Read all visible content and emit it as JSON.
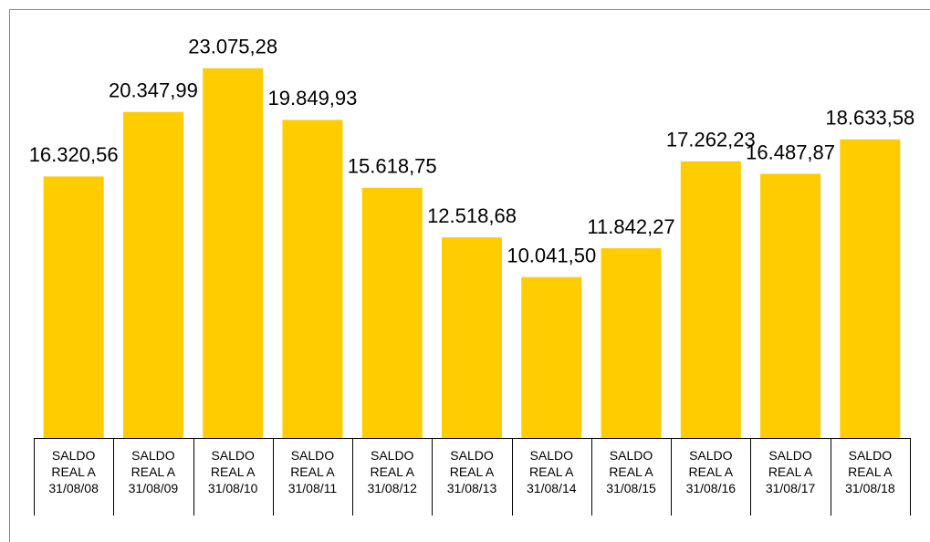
{
  "chart_data": {
    "type": "bar",
    "categories": [
      "SALDO REAL A 31/08/08",
      "SALDO REAL A 31/08/09",
      "SALDO REAL A 31/08/10",
      "SALDO REAL A 31/08/11",
      "SALDO REAL A 31/08/12",
      "SALDO REAL A 31/08/13",
      "SALDO REAL A 31/08/14",
      "SALDO REAL A 31/08/15",
      "SALDO REAL A 31/08/16",
      "SALDO REAL A 31/08/17",
      "SALDO REAL A 31/08/18"
    ],
    "values": [
      16320.56,
      20347.99,
      23075.28,
      19849.93,
      15618.75,
      12518.68,
      10041.5,
      11842.27,
      17262.23,
      16487.87,
      18633.58
    ],
    "value_labels": [
      "16.320,56",
      "20.347,99",
      "23.075,28",
      "19.849,93",
      "15.618,75",
      "12.518,68",
      "10.041,50",
      "11.842,27",
      "17.262,23",
      "16.487,87",
      "18.633,58"
    ],
    "color": "#ffcc00",
    "ylim": [
      0,
      25000
    ]
  }
}
